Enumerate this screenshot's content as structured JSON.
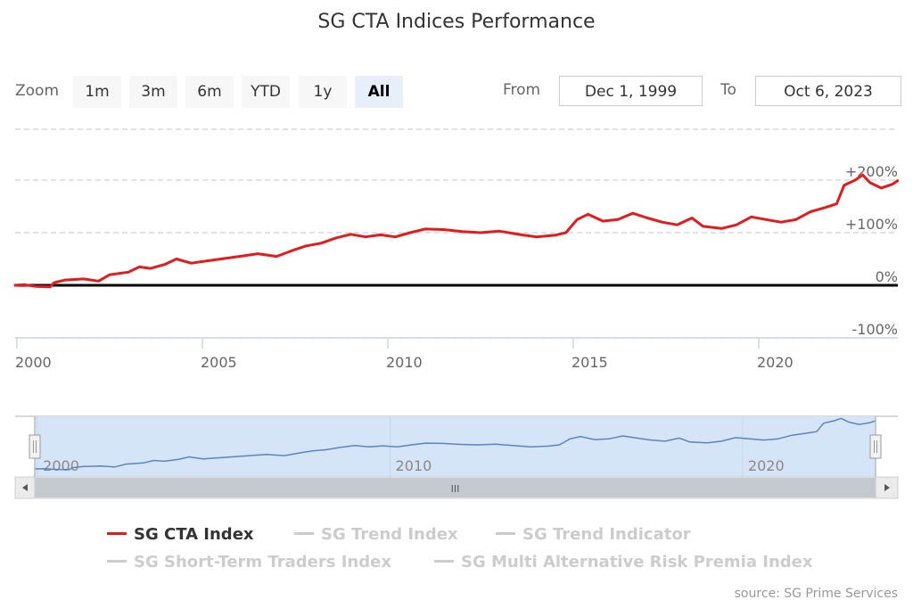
{
  "chart_data": {
    "type": "line",
    "title": "SG CTA Indices Performance",
    "xlabel": "",
    "ylabel": "",
    "x_ticks": [
      "2000",
      "2005",
      "2010",
      "2015",
      "2020"
    ],
    "y_ticks": [
      "-100%",
      "0%",
      "+100%",
      "+200%"
    ],
    "ylim": [
      -100,
      300
    ],
    "xlim": [
      1999.92,
      2023.77
    ],
    "grid": true,
    "legend_position": "bottom",
    "series": [
      {
        "name": "SG CTA Index",
        "color": "#e41a1c",
        "visible": true,
        "x": [
          1999.92,
          2000.2,
          2000.5,
          2000.9,
          2001.0,
          2001.3,
          2001.8,
          2002.2,
          2002.5,
          2003.0,
          2003.3,
          2003.6,
          2004.0,
          2004.3,
          2004.7,
          2005.0,
          2005.5,
          2006.0,
          2006.5,
          2007.0,
          2007.5,
          2007.8,
          2008.2,
          2008.6,
          2009.0,
          2009.4,
          2009.8,
          2010.2,
          2010.6,
          2011.0,
          2011.5,
          2012.0,
          2012.5,
          2013.0,
          2013.6,
          2014.0,
          2014.5,
          2014.8,
          2015.1,
          2015.4,
          2015.8,
          2016.2,
          2016.6,
          2017.0,
          2017.4,
          2017.8,
          2018.2,
          2018.5,
          2019.0,
          2019.4,
          2019.8,
          2020.2,
          2020.6,
          2021.0,
          2021.4,
          2021.8,
          2022.1,
          2022.3,
          2022.6,
          2022.8,
          2023.0,
          2023.3,
          2023.6,
          2023.77
        ],
        "y": [
          0,
          1,
          -2,
          -3,
          5,
          10,
          12,
          8,
          20,
          25,
          35,
          32,
          40,
          50,
          42,
          45,
          50,
          55,
          60,
          55,
          68,
          75,
          80,
          90,
          97,
          92,
          96,
          92,
          100,
          107,
          106,
          102,
          100,
          103,
          96,
          92,
          95,
          100,
          125,
          135,
          122,
          125,
          137,
          128,
          120,
          115,
          128,
          112,
          108,
          115,
          130,
          125,
          120,
          125,
          140,
          148,
          155,
          190,
          200,
          210,
          195,
          185,
          192,
          200
        ]
      },
      {
        "name": "SG Trend Index",
        "color": "#cccccc",
        "visible": false,
        "x": [],
        "y": []
      },
      {
        "name": "SG Trend Indicator",
        "color": "#cccccc",
        "visible": false,
        "x": [],
        "y": []
      },
      {
        "name": "SG Short-Term Traders Index",
        "color": "#cccccc",
        "visible": false,
        "x": [],
        "y": []
      },
      {
        "name": "SG Multi Alternative Risk Premia Index",
        "color": "#cccccc",
        "visible": false,
        "x": [],
        "y": []
      }
    ],
    "navigator": {
      "x_ticks": [
        "2000",
        "2010",
        "2020"
      ]
    },
    "source": "source: SG Prime Services"
  },
  "range_selector": {
    "zoom_label": "Zoom",
    "buttons": [
      "1m",
      "3m",
      "6m",
      "YTD",
      "1y",
      "All"
    ],
    "active": "All",
    "from_label": "From",
    "from_value": "Dec 1, 1999",
    "to_label": "To",
    "to_value": "Oct 6, 2023"
  },
  "scrollbar": {
    "left_arrow": "◀",
    "right_arrow": "▶",
    "grip": "III"
  }
}
